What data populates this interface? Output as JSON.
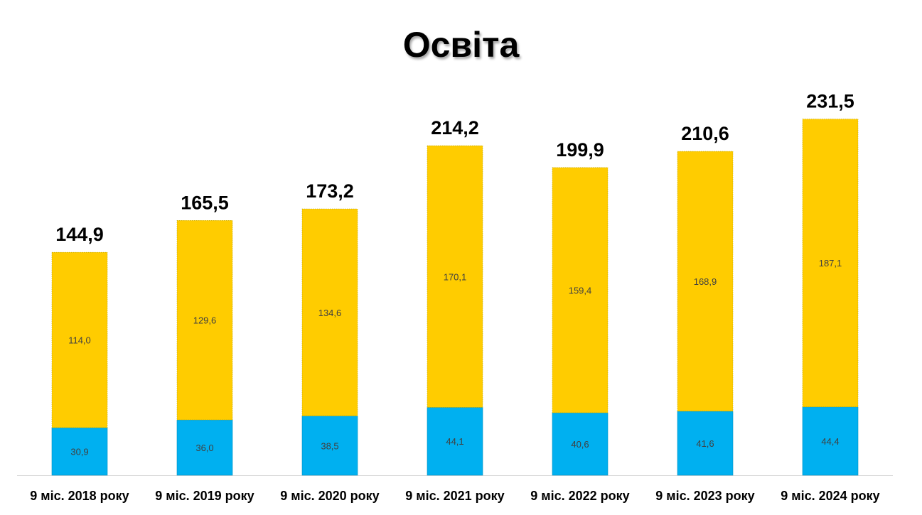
{
  "chart_data": {
    "type": "bar",
    "stacked": true,
    "title": "Освіта",
    "categories": [
      "9 міс. 2018 року",
      "9 міс. 2019 року",
      "9 міс. 2020 року",
      "9 міс. 2021 року",
      "9 міс. 2022 року",
      "9 міс. 2023 року",
      "9 міс. 2024 року"
    ],
    "series": [
      {
        "color": "#00B0F0",
        "values": [
          30.9,
          36.0,
          38.5,
          44.1,
          40.6,
          41.6,
          44.4
        ],
        "labels": [
          "30,9",
          "36,0",
          "38,5",
          "44,1",
          "40,6",
          "41,6",
          "44,4"
        ]
      },
      {
        "color": "#FFCC00",
        "values": [
          114.0,
          129.6,
          134.6,
          170.1,
          159.4,
          168.9,
          187.1
        ],
        "labels": [
          "114,0",
          "129,6",
          "134,6",
          "170,1",
          "159,4",
          "168,9",
          "187,1"
        ]
      }
    ],
    "totals": [
      144.9,
      165.5,
      173.2,
      214.2,
      199.9,
      210.6,
      231.5
    ],
    "total_labels": [
      "144,9",
      "165,5",
      "173,2",
      "214,2",
      "199,9",
      "210,6",
      "231,5"
    ],
    "ylim": [
      0,
      235
    ],
    "grid": false,
    "legend": "none"
  }
}
